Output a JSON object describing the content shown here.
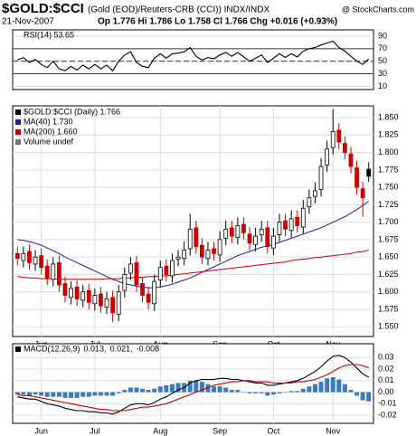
{
  "header": {
    "symbol": "$GOLD:$CCI",
    "description": "(Gold (EOD)/Reuters-CRB (CCI)) INDX/INDX",
    "source": "@ StockCharts.com",
    "date": "21-Nov-2007",
    "quote": "Op 1.776  Hi 1.786  Lo 1.758  Cl 1.766  Chg +0.016 (+0.93%)"
  },
  "chart_data": [
    {
      "type": "line",
      "legend": "RSI(14) 53.65",
      "xlim": [
        -0.5,
        59.5
      ],
      "ylim": [
        5,
        100
      ],
      "yticks": [
        10,
        30,
        50,
        70,
        90
      ],
      "reference_lines": [
        30,
        50,
        70
      ],
      "grid": true,
      "series": [
        {
          "color": "#000000",
          "values": [
            52,
            56,
            48,
            53,
            45,
            40,
            50,
            38,
            35,
            42,
            36,
            44,
            38,
            45,
            38,
            44,
            35,
            50,
            60,
            65,
            48,
            42,
            40,
            55,
            62,
            55,
            62,
            63,
            65,
            72,
            58,
            52,
            56,
            54,
            60,
            64,
            58,
            64,
            57,
            50,
            55,
            60,
            48,
            55,
            62,
            56,
            62,
            57,
            66,
            70,
            72,
            76,
            79,
            82,
            72,
            66,
            58,
            50,
            45,
            53.65
          ]
        }
      ]
    },
    {
      "type": "candlestick",
      "legend": [
        "$GOLD:$CCI (Daily) 1.766",
        "MA(40) 1.730",
        "MA(200) 1.660",
        "Volume undef"
      ],
      "legend_colors": [
        "#000000",
        "#1c1c9c",
        "#cc0000",
        "#777777"
      ],
      "xlim": [
        -0.5,
        59.5
      ],
      "ylim": [
        1.536,
        1.867
      ],
      "grid": true,
      "up_color": "#000000",
      "down_color": "#cc0000",
      "xticks": [
        {
          "value": 4,
          "label": "Jun"
        },
        {
          "value": 13,
          "label": "Jul"
        },
        {
          "value": 24,
          "label": "Aug"
        },
        {
          "value": 34,
          "label": "Sep"
        },
        {
          "value": 43,
          "label": "Oct"
        },
        {
          "value": 53,
          "label": "Nov"
        }
      ],
      "yticks": [
        {
          "value": 1.55,
          "label": "1.550"
        },
        1.575,
        {
          "value": 1.6,
          "label": "1.600"
        },
        1.625,
        {
          "value": 1.65,
          "label": "1.650"
        },
        1.675,
        {
          "value": 1.7,
          "label": "1.700"
        },
        1.725,
        {
          "value": 1.75,
          "label": "1.750"
        },
        1.775,
        {
          "value": 1.8,
          "label": "1.800"
        },
        1.825,
        {
          "value": 1.85,
          "label": "1.850"
        }
      ],
      "open": [
        1.655,
        1.645,
        1.658,
        1.64,
        1.652,
        1.637,
        1.618,
        1.642,
        1.612,
        1.592,
        1.607,
        1.588,
        1.602,
        1.583,
        1.597,
        1.578,
        1.592,
        1.568,
        1.602,
        1.627,
        1.642,
        1.612,
        1.597,
        1.583,
        1.617,
        1.637,
        1.623,
        1.647,
        1.648,
        1.662,
        1.692,
        1.667,
        1.648,
        1.662,
        1.653,
        1.677,
        1.692,
        1.678,
        1.697,
        1.683,
        1.668,
        1.682,
        1.692,
        1.663,
        1.682,
        1.702,
        1.688,
        1.707,
        1.693,
        1.722,
        1.737,
        1.747,
        1.782,
        1.807,
        1.832,
        1.813,
        1.798,
        1.778,
        1.748,
        1.776
      ],
      "high": [
        1.665,
        1.665,
        1.668,
        1.66,
        1.662,
        1.647,
        1.65,
        1.652,
        1.622,
        1.615,
        1.617,
        1.61,
        1.612,
        1.605,
        1.607,
        1.6,
        1.602,
        1.61,
        1.635,
        1.65,
        1.652,
        1.622,
        1.607,
        1.625,
        1.645,
        1.647,
        1.655,
        1.66,
        1.672,
        1.712,
        1.702,
        1.677,
        1.672,
        1.672,
        1.687,
        1.702,
        1.702,
        1.707,
        1.707,
        1.693,
        1.692,
        1.702,
        1.702,
        1.692,
        1.712,
        1.712,
        1.717,
        1.717,
        1.732,
        1.747,
        1.757,
        1.792,
        1.817,
        1.862,
        1.842,
        1.823,
        1.808,
        1.788,
        1.758,
        1.786
      ],
      "low": [
        1.638,
        1.635,
        1.632,
        1.63,
        1.625,
        1.61,
        1.608,
        1.6,
        1.585,
        1.582,
        1.58,
        1.578,
        1.575,
        1.573,
        1.57,
        1.568,
        1.557,
        1.558,
        1.592,
        1.617,
        1.6,
        1.585,
        1.575,
        1.573,
        1.607,
        1.615,
        1.613,
        1.637,
        1.638,
        1.652,
        1.655,
        1.64,
        1.638,
        1.645,
        1.643,
        1.667,
        1.67,
        1.668,
        1.675,
        1.66,
        1.658,
        1.672,
        1.655,
        1.653,
        1.672,
        1.68,
        1.678,
        1.685,
        1.683,
        1.712,
        1.727,
        1.737,
        1.772,
        1.797,
        1.805,
        1.79,
        1.77,
        1.74,
        1.708,
        1.758
      ],
      "close": [
        1.648,
        1.655,
        1.642,
        1.65,
        1.635,
        1.62,
        1.64,
        1.61,
        1.595,
        1.605,
        1.59,
        1.6,
        1.585,
        1.595,
        1.58,
        1.59,
        1.57,
        1.6,
        1.625,
        1.64,
        1.61,
        1.595,
        1.585,
        1.615,
        1.635,
        1.625,
        1.645,
        1.65,
        1.66,
        1.69,
        1.665,
        1.65,
        1.66,
        1.655,
        1.675,
        1.69,
        1.68,
        1.695,
        1.685,
        1.67,
        1.68,
        1.69,
        1.665,
        1.68,
        1.7,
        1.69,
        1.705,
        1.695,
        1.72,
        1.735,
        1.745,
        1.78,
        1.805,
        1.83,
        1.815,
        1.8,
        1.78,
        1.75,
        1.735,
        1.766
      ],
      "series": [
        {
          "color": "#1c1c9c",
          "values": [
            1.675,
            1.674,
            1.672,
            1.67,
            1.667,
            1.663,
            1.659,
            1.655,
            1.65,
            1.646,
            1.642,
            1.638,
            1.634,
            1.63,
            1.626,
            1.622,
            1.618,
            1.615,
            1.612,
            1.61,
            1.608,
            1.607,
            1.606,
            1.606,
            1.607,
            1.609,
            1.611,
            1.614,
            1.617,
            1.62,
            1.624,
            1.628,
            1.632,
            1.636,
            1.64,
            1.644,
            1.648,
            1.652,
            1.655,
            1.658,
            1.661,
            1.664,
            1.666,
            1.668,
            1.671,
            1.674,
            1.677,
            1.68,
            1.683,
            1.686,
            1.689,
            1.692,
            1.696,
            1.7,
            1.704,
            1.708,
            1.713,
            1.718,
            1.724,
            1.73
          ]
        },
        {
          "color": "#cc0000",
          "values": [
            1.622,
            1.621,
            1.62,
            1.62,
            1.619,
            1.619,
            1.619,
            1.618,
            1.618,
            1.618,
            1.618,
            1.618,
            1.618,
            1.618,
            1.618,
            1.619,
            1.619,
            1.619,
            1.62,
            1.62,
            1.621,
            1.621,
            1.622,
            1.622,
            1.623,
            1.623,
            1.624,
            1.625,
            1.626,
            1.627,
            1.628,
            1.629,
            1.63,
            1.631,
            1.632,
            1.633,
            1.634,
            1.635,
            1.636,
            1.637,
            1.638,
            1.639,
            1.64,
            1.641,
            1.642,
            1.643,
            1.645,
            1.646,
            1.647,
            1.648,
            1.649,
            1.65,
            1.651,
            1.652,
            1.653,
            1.654,
            1.655,
            1.657,
            1.658,
            1.66
          ]
        }
      ]
    },
    {
      "type": "line",
      "legend": [
        "MACD(12,26,9)",
        "0.013,",
        "0.021,",
        "-0.008"
      ],
      "legend_colors": [
        "#000000",
        "#000000",
        "#cc0000",
        "#3a7bbf"
      ],
      "xlim": [
        -0.5,
        59.5
      ],
      "ylim": [
        -0.027,
        0.042
      ],
      "grid": true,
      "xticks": [
        {
          "value": 4,
          "label": "Jun"
        },
        {
          "value": 13,
          "label": "Jul"
        },
        {
          "value": 24,
          "label": "Aug"
        },
        {
          "value": 34,
          "label": "Sep"
        },
        {
          "value": 43,
          "label": "Oct"
        },
        {
          "value": 53,
          "label": "Nov"
        }
      ],
      "yticks": [
        0.03,
        0.02,
        0.01,
        {
          "value": 0,
          "label": "0.00"
        },
        -0.01,
        -0.02
      ],
      "series": [
        {
          "kind": "bar",
          "color": "#3a7bbf",
          "values": [
            -0.002,
            -0.002,
            -0.003,
            -0.002,
            -0.003,
            -0.004,
            -0.004,
            -0.004,
            -0.005,
            -0.005,
            -0.005,
            -0.004,
            -0.004,
            -0.003,
            -0.003,
            -0.003,
            -0.003,
            -0.001,
            0.002,
            0.004,
            0.004,
            0.003,
            0.002,
            0.003,
            0.005,
            0.006,
            0.007,
            0.008,
            0.008,
            0.01,
            0.01,
            0.009,
            0.007,
            0.005,
            0.005,
            0.004,
            0.002,
            0.002,
            0.0,
            -0.001,
            -0.001,
            -0.001,
            -0.003,
            -0.002,
            -0.001,
            0.0,
            0.001,
            0.001,
            0.003,
            0.005,
            0.007,
            0.009,
            0.012,
            0.013,
            0.011,
            0.007,
            0.002,
            -0.003,
            -0.007,
            -0.008
          ]
        },
        {
          "kind": "line",
          "color": "#000000",
          "values": [
            -0.004,
            -0.005,
            -0.006,
            -0.006,
            -0.008,
            -0.01,
            -0.011,
            -0.012,
            -0.014,
            -0.015,
            -0.016,
            -0.016,
            -0.017,
            -0.017,
            -0.018,
            -0.018,
            -0.019,
            -0.017,
            -0.014,
            -0.011,
            -0.01,
            -0.01,
            -0.011,
            -0.009,
            -0.006,
            -0.004,
            -0.001,
            0.002,
            0.004,
            0.008,
            0.01,
            0.011,
            0.011,
            0.011,
            0.012,
            0.012,
            0.011,
            0.011,
            0.01,
            0.009,
            0.008,
            0.008,
            0.006,
            0.006,
            0.007,
            0.008,
            0.009,
            0.01,
            0.012,
            0.015,
            0.018,
            0.022,
            0.027,
            0.031,
            0.032,
            0.03,
            0.026,
            0.021,
            0.016,
            0.013
          ]
        },
        {
          "kind": "line",
          "color": "#cc0000",
          "values": [
            -0.002,
            -0.003,
            -0.003,
            -0.004,
            -0.005,
            -0.006,
            -0.007,
            -0.008,
            -0.009,
            -0.01,
            -0.011,
            -0.012,
            -0.013,
            -0.014,
            -0.015,
            -0.015,
            -0.016,
            -0.016,
            -0.016,
            -0.015,
            -0.014,
            -0.013,
            -0.013,
            -0.012,
            -0.011,
            -0.01,
            -0.008,
            -0.006,
            -0.004,
            -0.002,
            0.0,
            0.002,
            0.004,
            0.006,
            0.007,
            0.008,
            0.009,
            0.009,
            0.01,
            0.01,
            0.009,
            0.009,
            0.009,
            0.008,
            0.008,
            0.008,
            0.008,
            0.009,
            0.009,
            0.01,
            0.011,
            0.013,
            0.015,
            0.018,
            0.021,
            0.023,
            0.024,
            0.024,
            0.023,
            0.021
          ]
        }
      ]
    }
  ]
}
